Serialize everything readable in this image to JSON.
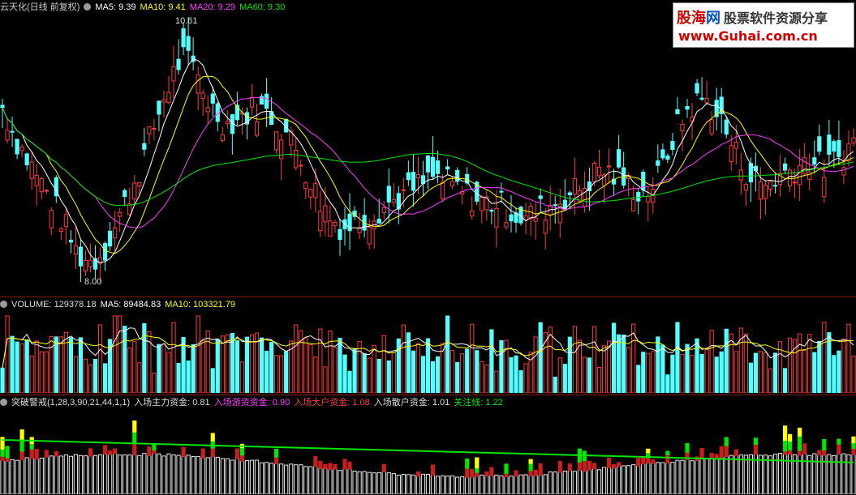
{
  "price_header": {
    "title": "云天化(日线 前复权)",
    "ma5": "MA5: 9.39",
    "ma10": "MA10: 9.41",
    "ma20": "MA20: 9.29",
    "ma60": "MA60: 9.30"
  },
  "price_marks": {
    "high": "10.61",
    "low": "8.00"
  },
  "volume_header": {
    "volume": "VOLUME: 129378.18",
    "ma5": "MA5: 89484.83",
    "ma10": "MA10: 103321.79"
  },
  "indicator_header": {
    "name": "突破警戒(1,28,3,90,21,44,1,1)",
    "main": "入场主力资金: 0.81",
    "hot": "入场游资资金: 0.90",
    "big": "入场大户资金: 1.08",
    "retail": "入场散户资金: 1.01",
    "focus": "关注线: 1.22"
  },
  "watermark": {
    "name_a": "股海",
    "name_b": "网",
    "slogan": "股票软件资源分享",
    "url": "www.Guhai.com.cn"
  },
  "colors": {
    "up": "#ff3c3c",
    "down": "#54ffff",
    "ma5": "#ffffff",
    "ma10": "#ffff00",
    "ma20": "#ff3cff",
    "ma60": "#00e600",
    "separator": "#8b1a1a"
  },
  "chart_data": {
    "type": "candlestick",
    "close_path": [
      9.9,
      9.5,
      9.2,
      8.9,
      8.6,
      8.2,
      8.1,
      8.3,
      8.7,
      9.1,
      9.6,
      10.1,
      10.5,
      10.3,
      9.9,
      9.7,
      9.8,
      9.9,
      9.8,
      9.6,
      9.3,
      8.9,
      8.6,
      8.5,
      8.6,
      8.7,
      8.8,
      8.9,
      9.0,
      9.1,
      9.0,
      8.9,
      8.8,
      8.8,
      8.7,
      8.6,
      8.7,
      8.8,
      8.9,
      9.0,
      9.2,
      9.1,
      9.0,
      8.9,
      9.1,
      9.6,
      9.9,
      10.0,
      9.8,
      9.4,
      9.1,
      9.0,
      9.1,
      9.2,
      9.3,
      9.2,
      9.3,
      9.5
    ],
    "y_range": [
      7.8,
      10.9
    ],
    "price_labels": {
      "max": 10.61,
      "min": 8.0
    },
    "volume_note": "bar heights relative; latest volume 129378.18"
  }
}
